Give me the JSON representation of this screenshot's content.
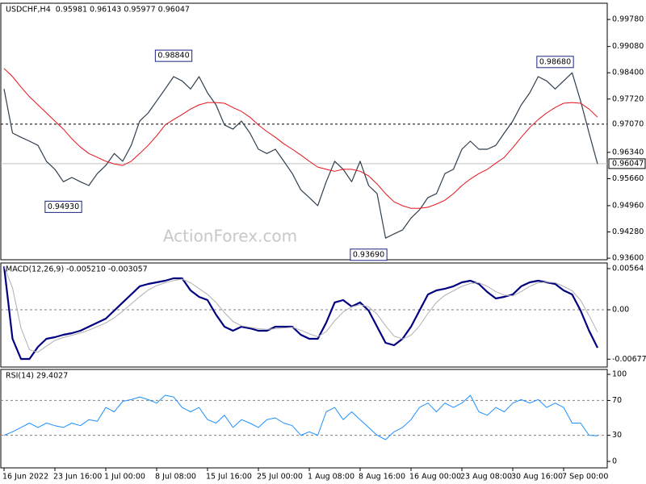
{
  "chart_data": [
    {
      "type": "line",
      "title": "USDCHF,H4",
      "subtitle": "0.95981 0.96143 0.95977 0.96047",
      "watermark": "ActionForex.com",
      "ylim": [
        0.9356,
        1.002
      ],
      "yticks": [
        {
          "value": 0.9978,
          "label": "0.99780"
        },
        {
          "value": 0.9908,
          "label": "0.99080"
        },
        {
          "value": 0.984,
          "label": "0.98400"
        },
        {
          "value": 0.9772,
          "label": "0.97720"
        },
        {
          "value": 0.9634,
          "label": "0.96340"
        },
        {
          "value": 0.9566,
          "label": "0.95660"
        },
        {
          "value": 0.9496,
          "label": "0.94960"
        },
        {
          "value": 0.9428,
          "label": "0.94280"
        },
        {
          "value": 0.936,
          "label": "0.93600"
        }
      ],
      "series": [
        {
          "color": "#2f3f4f",
          "line_width": 1.2,
          "values": [
            0.9798,
            0.9684,
            0.9673,
            0.9663,
            0.9652,
            0.9611,
            0.959,
            0.9558,
            0.9569,
            0.9558,
            0.9548,
            0.9579,
            0.96,
            0.9631,
            0.9611,
            0.9652,
            0.9715,
            0.9736,
            0.9767,
            0.9798,
            0.983,
            0.9819,
            0.9798,
            0.983,
            0.9788,
            0.9757,
            0.9705,
            0.9694,
            0.9715,
            0.9684,
            0.9642,
            0.9631,
            0.9642,
            0.9611,
            0.9579,
            0.9537,
            0.9517,
            0.9496,
            0.9558,
            0.9611,
            0.959,
            0.9558,
            0.9611,
            0.9548,
            0.9527,
            0.9412,
            0.9423,
            0.9433,
            0.9464,
            0.9485,
            0.9517,
            0.9527,
            0.9579,
            0.959,
            0.9642,
            0.9663,
            0.9642,
            0.9642,
            0.9652,
            0.9684,
            0.9715,
            0.9757,
            0.9788,
            0.983,
            0.9819,
            0.9798,
            0.9819,
            0.984,
            0.9767,
            0.9684,
            0.9604
          ]
        },
        {
          "color": "#e8121b",
          "line_width": 1,
          "values": [
            0.9851,
            0.983,
            0.9803,
            0.9778,
            0.9757,
            0.9736,
            0.9715,
            0.9694,
            0.9669,
            0.9648,
            0.9631,
            0.9621,
            0.9611,
            0.9604,
            0.96,
            0.9611,
            0.9631,
            0.9652,
            0.9677,
            0.9705,
            0.9719,
            0.9732,
            0.9746,
            0.9757,
            0.9763,
            0.9763,
            0.9761,
            0.975,
            0.974,
            0.9725,
            0.9705,
            0.9688,
            0.9673,
            0.9656,
            0.9642,
            0.9627,
            0.9611,
            0.9596,
            0.959,
            0.9585,
            0.959,
            0.959,
            0.9585,
            0.9573,
            0.9552,
            0.9527,
            0.9506,
            0.9496,
            0.9489,
            0.9489,
            0.9492,
            0.95,
            0.951,
            0.9527,
            0.9548,
            0.9565,
            0.9579,
            0.959,
            0.9606,
            0.9621,
            0.9646,
            0.9673,
            0.9698,
            0.9719,
            0.9736,
            0.975,
            0.9761,
            0.9763,
            0.9761,
            0.9746,
            0.9725
          ]
        }
      ],
      "hlines": [
        {
          "value": 0.9707,
          "label": "0.97070",
          "style": "dashed",
          "color": "#000000"
        },
        {
          "value": 0.96047,
          "label": "0.96047",
          "style": "solid",
          "color": "#c0c0c0"
        }
      ],
      "annotations": [
        {
          "value": 0.9884,
          "label": "0.98840",
          "index": 20
        },
        {
          "value": 0.9493,
          "label": "0.94930",
          "index": 7
        },
        {
          "value": 0.9369,
          "label": "0.93690",
          "index": 43
        },
        {
          "value": 0.9868,
          "label": "0.98680",
          "index": 65
        }
      ]
    },
    {
      "type": "line",
      "title": "MACD(12,26,9) -0.005210 -0.003057",
      "ylim": [
        -0.00785,
        0.00641
      ],
      "yticks": [
        {
          "value": 0.00564,
          "label": "0.00564"
        },
        {
          "value": 0,
          "label": "0.00",
          "line": "dashed"
        },
        {
          "value": -0.006773,
          "label": "-0.006773"
        }
      ],
      "series": [
        {
          "color": "#000080",
          "line_width": 2.2,
          "values": [
            0.00597,
            -0.00398,
            -0.00675,
            -0.00675,
            -0.00509,
            -0.00398,
            -0.00376,
            -0.00343,
            -0.00321,
            -0.00288,
            -0.00232,
            -0.00177,
            -0.00122,
            -0.00011,
            0.001,
            0.0021,
            0.00321,
            0.00354,
            0.00376,
            0.00398,
            0.00431,
            0.00431,
            0.00265,
            0.00177,
            0.00133,
            -0.00066,
            -0.00232,
            -0.00288,
            -0.00232,
            -0.00254,
            -0.00288,
            -0.00288,
            -0.00232,
            -0.00232,
            -0.00232,
            -0.00343,
            -0.00398,
            -0.00398,
            -0.00177,
            0.001,
            0.00133,
            0.00044,
            0.001,
            -0.00011,
            -0.00232,
            -0.00453,
            -0.00487,
            -0.00398,
            -0.00232,
            -0.00011,
            0.0021,
            0.00265,
            0.00288,
            0.00321,
            0.00376,
            0.00398,
            0.00354,
            0.00243,
            0.00155,
            0.00177,
            0.0021,
            0.00321,
            0.00376,
            0.00398,
            0.00376,
            0.00354,
            0.00265,
            0.0021,
            -0.00011,
            -0.00288,
            -0.00521
          ]
        },
        {
          "color": "#b0b0b0",
          "line_width": 1,
          "values": [
            0.00597,
            0.003,
            -0.0025,
            -0.0055,
            -0.0058,
            -0.005,
            -0.0042,
            -0.0038,
            -0.0035,
            -0.0032,
            -0.0028,
            -0.0023,
            -0.0018,
            -0.0011,
            -0.0002,
            0.0008,
            0.0018,
            0.0027,
            0.0033,
            0.0037,
            0.004,
            0.0042,
            0.0037,
            0.0029,
            0.0021,
            0.001,
            -0.0004,
            -0.0016,
            -0.0022,
            -0.0024,
            -0.0026,
            -0.0027,
            -0.0026,
            -0.0025,
            -0.0024,
            -0.0028,
            -0.0033,
            -0.0037,
            -0.003,
            -0.0015,
            -0.0003,
            0.0004,
            0.0007,
            0.0004,
            -0.0006,
            -0.0022,
            -0.0036,
            -0.004,
            -0.0035,
            -0.0022,
            -0.0005,
            0.001,
            0.002,
            0.0026,
            0.0032,
            0.0036,
            0.0037,
            0.0032,
            0.0025,
            0.002,
            0.0019,
            0.0025,
            0.0032,
            0.0037,
            0.0038,
            0.0037,
            0.0032,
            0.0026,
            0.0013,
            -0.0008,
            -0.00306
          ]
        }
      ]
    },
    {
      "type": "line",
      "title": "RSI(14) 29.4027",
      "ylim": [
        -7.4,
        105.6
      ],
      "yticks": [
        0,
        {
          "value": 30,
          "label": "30",
          "line": "dashed"
        },
        {
          "value": 70,
          "label": "70",
          "line": "dashed"
        },
        100
      ],
      "categories": [
        "16 Jun 2022",
        null,
        null,
        null,
        null,
        null,
        "23 Jun 16:00",
        null,
        null,
        null,
        null,
        null,
        "1 Jul 00:00",
        null,
        null,
        null,
        null,
        null,
        "8 Jul 08:00",
        null,
        null,
        null,
        null,
        null,
        "15 Jul 16:00",
        null,
        null,
        null,
        null,
        null,
        "25 Jul 00:00",
        null,
        null,
        null,
        null,
        null,
        "1 Aug 08:00",
        null,
        null,
        null,
        null,
        null,
        "8 Aug 16:00",
        null,
        null,
        null,
        null,
        null,
        "16 Aug 00:00",
        null,
        null,
        null,
        null,
        null,
        "23 Aug 08:00",
        null,
        null,
        null,
        null,
        null,
        "30 Aug 16:00",
        null,
        null,
        null,
        null,
        null,
        "7 Sep 00:00",
        null,
        null,
        null,
        null
      ],
      "series": [
        {
          "color": "#1e90ff",
          "line_width": 1,
          "values": [
            30,
            34,
            39,
            44,
            39,
            44,
            41,
            39,
            44,
            41,
            48,
            46,
            62,
            57,
            69,
            71,
            74,
            71,
            67,
            76,
            74,
            62,
            57,
            62,
            48,
            44,
            53,
            39,
            48,
            44,
            39,
            48,
            50,
            44,
            41,
            30,
            34,
            30,
            57,
            62,
            48,
            57,
            48,
            39,
            30,
            25,
            34,
            39,
            48,
            62,
            67,
            57,
            67,
            62,
            67,
            76,
            57,
            53,
            62,
            57,
            67,
            71,
            67,
            71,
            62,
            67,
            62,
            44,
            44,
            30,
            29.4
          ]
        }
      ]
    }
  ]
}
